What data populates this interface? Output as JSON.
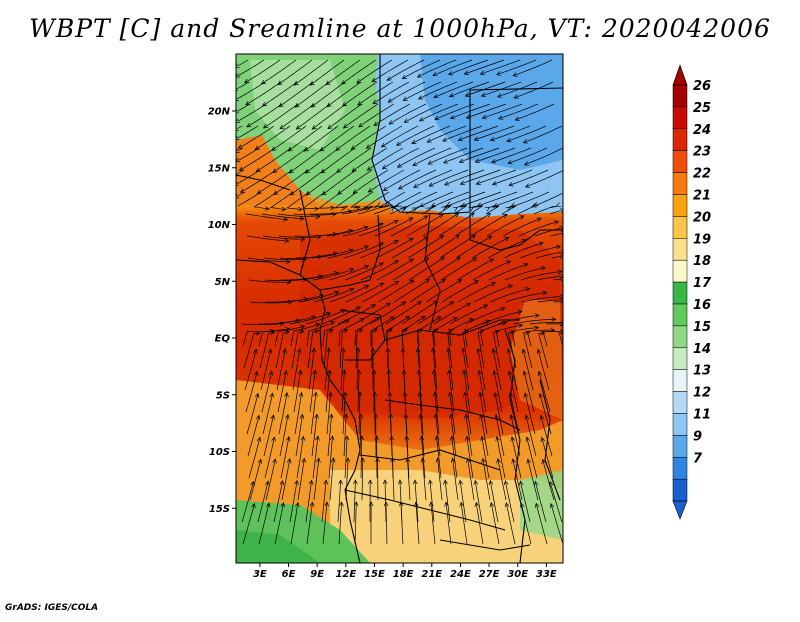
{
  "title": "WBPT [C] and Sreamline at 1000hPa, VT: 2020042006",
  "credit": "GrADS: IGES/COLA",
  "lat_labels": [
    {
      "text": "20N",
      "lat": 20
    },
    {
      "text": "15N",
      "lat": 15
    },
    {
      "text": "10N",
      "lat": 10
    },
    {
      "text": "5N",
      "lat": 5
    },
    {
      "text": "EQ",
      "lat": 0
    },
    {
      "text": "5S",
      "lat": -5
    },
    {
      "text": "10S",
      "lat": -10
    },
    {
      "text": "15S",
      "lat": -15
    }
  ],
  "lon_labels": [
    {
      "text": "3E",
      "lon": 3
    },
    {
      "text": "6E",
      "lon": 6
    },
    {
      "text": "9E",
      "lon": 9
    },
    {
      "text": "12E",
      "lon": 12
    },
    {
      "text": "15E",
      "lon": 15
    },
    {
      "text": "18E",
      "lon": 18
    },
    {
      "text": "21E",
      "lon": 21
    },
    {
      "text": "24E",
      "lon": 24
    },
    {
      "text": "27E",
      "lon": 27
    },
    {
      "text": "30E",
      "lon": 30
    },
    {
      "text": "33E",
      "lon": 33
    }
  ],
  "colorbar": {
    "labels": [
      "26",
      "25",
      "24",
      "23",
      "22",
      "21",
      "20",
      "19",
      "18",
      "17",
      "16",
      "15",
      "14",
      "13",
      "12",
      "11",
      "9",
      "7"
    ],
    "colors": [
      "#a50000",
      "#c80a00",
      "#dc2800",
      "#ee4c0a",
      "#f77a0c",
      "#fba20e",
      "#fcc44a",
      "#fde08e",
      "#fdf6c8",
      "#39b54a",
      "#63c95c",
      "#8ed888",
      "#c5ebc0",
      "#e6f4f5",
      "#b4d9f5",
      "#8ec5f2",
      "#5aa7ea",
      "#2f84de",
      "#1a5fcf"
    ],
    "top_arrow_color": "#a50000",
    "bottom_arrow_color": "#1a5fcf"
  },
  "colors": {
    "ocean": "#d92800",
    "land_hot": "#e33a05",
    "sahel_green": "#7fd27a",
    "north_blue": "#7fb6ee",
    "south_tan": "#f7d27a"
  }
}
